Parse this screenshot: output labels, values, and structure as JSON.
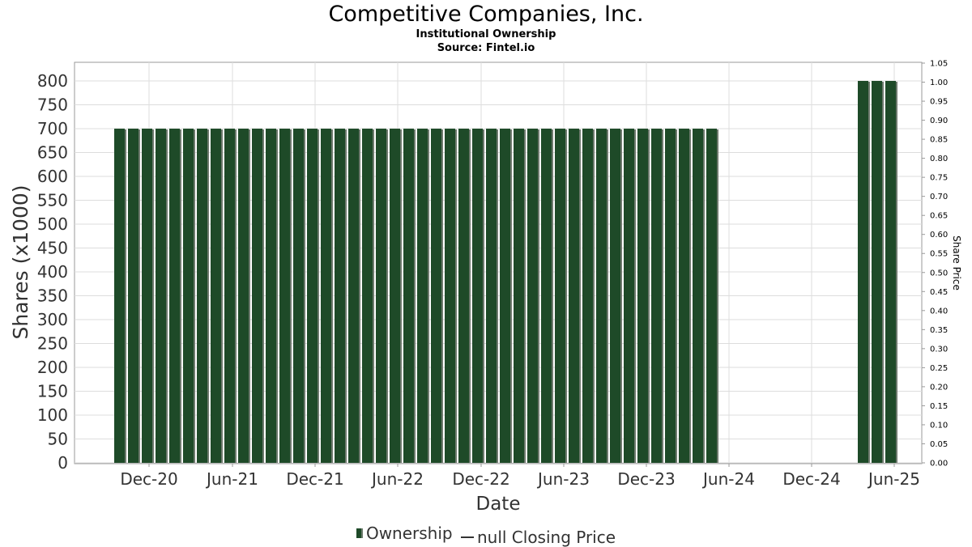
{
  "header": {
    "title": "Competitive Companies, Inc.",
    "subtitle": "Institutional Ownership",
    "source": "Source: Fintel.io"
  },
  "legend": {
    "ownership": "Ownership",
    "price": "null Closing Price"
  },
  "colors": {
    "bar": "#1e4a28",
    "bar_shadow": "#6e7a6e",
    "grid": "#dddddd"
  },
  "chart_data": {
    "type": "bar",
    "title": "Competitive Companies, Inc.",
    "xlabel": "Date",
    "ylabel": "Shares (x1000)",
    "y2label": "Share Price",
    "ylim": [
      0,
      830
    ],
    "y2lim": [
      0,
      1.05
    ],
    "y_ticks": [
      0,
      50,
      100,
      150,
      200,
      250,
      300,
      350,
      400,
      450,
      500,
      550,
      600,
      650,
      700,
      750,
      800
    ],
    "y2_ticks": [
      "0.00",
      "0.05",
      "0.10",
      "0.15",
      "0.20",
      "0.25",
      "0.30",
      "0.35",
      "0.40",
      "0.45",
      "0.50",
      "0.55",
      "0.60",
      "0.65",
      "0.70",
      "0.75",
      "0.80",
      "0.85",
      "0.90",
      "0.95",
      "1.00",
      "1.05"
    ],
    "x_ticks": [
      "Dec-20",
      "Jun-21",
      "Dec-21",
      "Jun-22",
      "Dec-22",
      "Jun-23",
      "Dec-23",
      "Jun-24",
      "Dec-24",
      "Jun-25"
    ],
    "grid": true,
    "legend_position": "bottom",
    "series": [
      {
        "name": "Ownership",
        "values": [
          700,
          700,
          700,
          700,
          700,
          700,
          700,
          700,
          700,
          700,
          700,
          700,
          700,
          700,
          700,
          700,
          700,
          700,
          700,
          700,
          700,
          700,
          700,
          700,
          700,
          700,
          700,
          700,
          700,
          700,
          700,
          700,
          700,
          700,
          700,
          700,
          700,
          700,
          700,
          700,
          700,
          700,
          700,
          700,
          800,
          800,
          800
        ]
      }
    ],
    "bar_gap_after_index": 43,
    "bar_gap_count": 10
  }
}
